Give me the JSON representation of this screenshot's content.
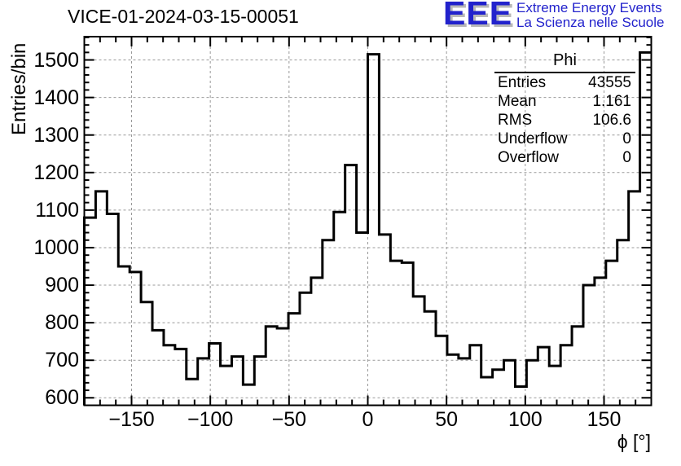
{
  "logo": {
    "acronym": "EEE",
    "line1": "Extreme Energy Events",
    "line2": "La Scienza nelle Scuole",
    "color": "#2222cc",
    "shadow_color": "#b8b8b8"
  },
  "stats_box": {
    "title": "Phi",
    "rows": [
      {
        "label": "Entries",
        "value": "43555"
      },
      {
        "label": "Mean",
        "value": "1.161"
      },
      {
        "label": "RMS",
        "value": "106.6"
      },
      {
        "label": "Underflow",
        "value": "0"
      },
      {
        "label": "Overflow",
        "value": "0"
      }
    ]
  },
  "axes": {
    "xlabel": "ϕ [°]",
    "ylabel": "Entries/bin",
    "x_tick_values": [
      -150,
      -100,
      -50,
      0,
      50,
      100,
      150
    ],
    "x_tick_labels": [
      "−150",
      "−100",
      "−50",
      "0",
      "50",
      "100",
      "150"
    ],
    "y_tick_values": [
      600,
      700,
      800,
      900,
      1000,
      1100,
      1200,
      1300,
      1400,
      1500
    ],
    "y_tick_labels": [
      "600",
      "700",
      "800",
      "900",
      "1000",
      "1100",
      "1200",
      "1300",
      "1400",
      "1500"
    ]
  },
  "chart_data": {
    "type": "bar",
    "subtype": "step-histogram",
    "title": "VICE-01-2024-03-15-00051",
    "xlabel": "ϕ [°]",
    "ylabel": "Entries/bin",
    "xlim": [
      -180,
      180
    ],
    "ylim": [
      580,
      1562
    ],
    "bin_start": -180,
    "bin_width": 7.2,
    "n_bins": 50,
    "values": [
      1080,
      1150,
      1090,
      950,
      935,
      855,
      780,
      740,
      730,
      650,
      705,
      745,
      685,
      710,
      635,
      710,
      790,
      785,
      825,
      880,
      920,
      1020,
      1095,
      1220,
      1040,
      1515,
      1035,
      965,
      960,
      870,
      830,
      765,
      715,
      705,
      740,
      655,
      675,
      700,
      630,
      700,
      735,
      685,
      740,
      790,
      900,
      920,
      965,
      1020,
      1150,
      1520
    ],
    "x_minor_step": 10,
    "y_minor_step": 20,
    "grid": true,
    "grid_color": "#999999",
    "line_color": "#000000",
    "frame_color": "#000000",
    "legend_position": "none",
    "stats_entries": 43555,
    "stats_mean": 1.161,
    "stats_rms": 106.6,
    "stats_underflow": 0,
    "stats_overflow": 0
  }
}
